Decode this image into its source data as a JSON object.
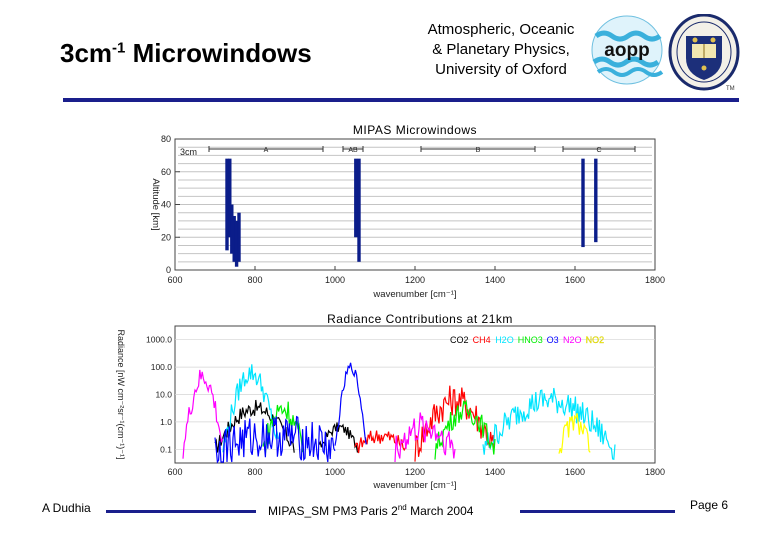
{
  "header": {
    "title_main": "3cm",
    "title_sup": "-1",
    "title_rest": " Microwindows",
    "institution_lines": [
      "Atmospheric, Oceanic",
      "& Planetary Physics,",
      "University of Oxford"
    ],
    "logo_text": "aopp"
  },
  "footer": {
    "author": "A Dudhia",
    "center_pre": "MIPAS_SM PM3 Paris 2",
    "center_sup": "nd",
    "center_post": " March 2004",
    "page": "Page 6"
  },
  "colors": {
    "rule": "#1a1f8c",
    "bars": "#0b1d8a"
  },
  "chart_data": [
    {
      "type": "bar",
      "title": "MIPAS Microwindows",
      "xlabel": "wavenumber [cm⁻¹]",
      "ylabel": "Altitude [km]",
      "xlim": [
        600,
        1800
      ],
      "ylim": [
        0,
        80
      ],
      "x_ticks": [
        "600",
        "800",
        "1000",
        "1200",
        "1400",
        "1600",
        "1800"
      ],
      "y_ticks": [
        "0",
        "20",
        "40",
        "60",
        "80"
      ],
      "corner_label": "3cm",
      "bands": [
        {
          "label": "A",
          "from": 685,
          "to": 970
        },
        {
          "label": "AB",
          "from": 1020,
          "to": 1070
        },
        {
          "label": "B",
          "from": 1215,
          "to": 1500
        },
        {
          "label": "C",
          "from": 1570,
          "to": 1750
        }
      ],
      "microwindows": [
        {
          "x": 730,
          "bottom": 12,
          "top": 68
        },
        {
          "x": 737,
          "bottom": 20,
          "top": 68
        },
        {
          "x": 742,
          "bottom": 10,
          "top": 40
        },
        {
          "x": 748,
          "bottom": 5,
          "top": 33
        },
        {
          "x": 754,
          "bottom": 2,
          "top": 30
        },
        {
          "x": 760,
          "bottom": 5,
          "top": 35
        },
        {
          "x": 1052,
          "bottom": 20,
          "top": 68
        },
        {
          "x": 1060,
          "bottom": 5,
          "top": 68
        },
        {
          "x": 1620,
          "bottom": 14,
          "top": 68
        },
        {
          "x": 1652,
          "bottom": 17,
          "top": 68
        }
      ]
    },
    {
      "type": "line",
      "title": "Radiance Contributions at 21km",
      "xlabel": "wavenumber [cm⁻¹]",
      "ylabel": "Radiance [nW cm⁻²sr⁻¹(cm⁻¹)⁻¹]",
      "xlim": [
        600,
        1800
      ],
      "log_y": true,
      "y_ticks": [
        "1000.0",
        "100.0",
        "10.0",
        "1.0",
        "0.1"
      ],
      "x_ticks": [
        "600",
        "800",
        "1000",
        "1200",
        "1400",
        "1600",
        "1800"
      ],
      "series": [
        {
          "name": "CO2",
          "color": "#000000"
        },
        {
          "name": "CH4",
          "color": "#ff0000"
        },
        {
          "name": "H2O",
          "color": "#00e5ff"
        },
        {
          "name": "HNO3",
          "color": "#00ee00"
        },
        {
          "name": "O3",
          "color": "#0000ff"
        },
        {
          "name": "N2O",
          "color": "#ff00ff"
        },
        {
          "name": "NO2",
          "color": "#ffff00"
        }
      ]
    }
  ]
}
